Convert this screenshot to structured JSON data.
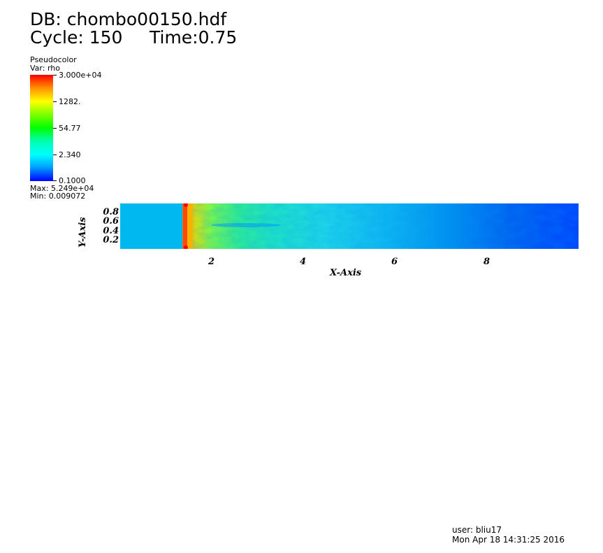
{
  "header": {
    "db_title": "DB: chombo00150.hdf",
    "cycle": "Cycle: 150",
    "time": "Time:0.75"
  },
  "legend": {
    "plot_type": "Pseudocolor",
    "variable": "Var: rho",
    "ticks": [
      "3.000e+04",
      "1282.",
      "54.77",
      "2.340",
      "0.1000"
    ],
    "max": "Max:  5.249e+04",
    "min": "Min:  0.009072",
    "colors": [
      "#ff0000",
      "#ffff00",
      "#00ff00",
      "#00ffff",
      "#0000ff"
    ]
  },
  "plot": {
    "y_axis_title": "Y-Axis",
    "x_axis_title": "X-Axis",
    "y_ticks": [
      "0.8",
      "0.6",
      "0.4",
      "0.2"
    ],
    "x_ticks": [
      "2",
      "4",
      "6",
      "8"
    ],
    "x_range": [
      0,
      10
    ],
    "y_range": [
      0,
      1
    ],
    "background_color": "#00b8f0"
  },
  "footer": {
    "user": "user: bliu17",
    "date": "Mon Apr 18 14:31:25 2016"
  }
}
